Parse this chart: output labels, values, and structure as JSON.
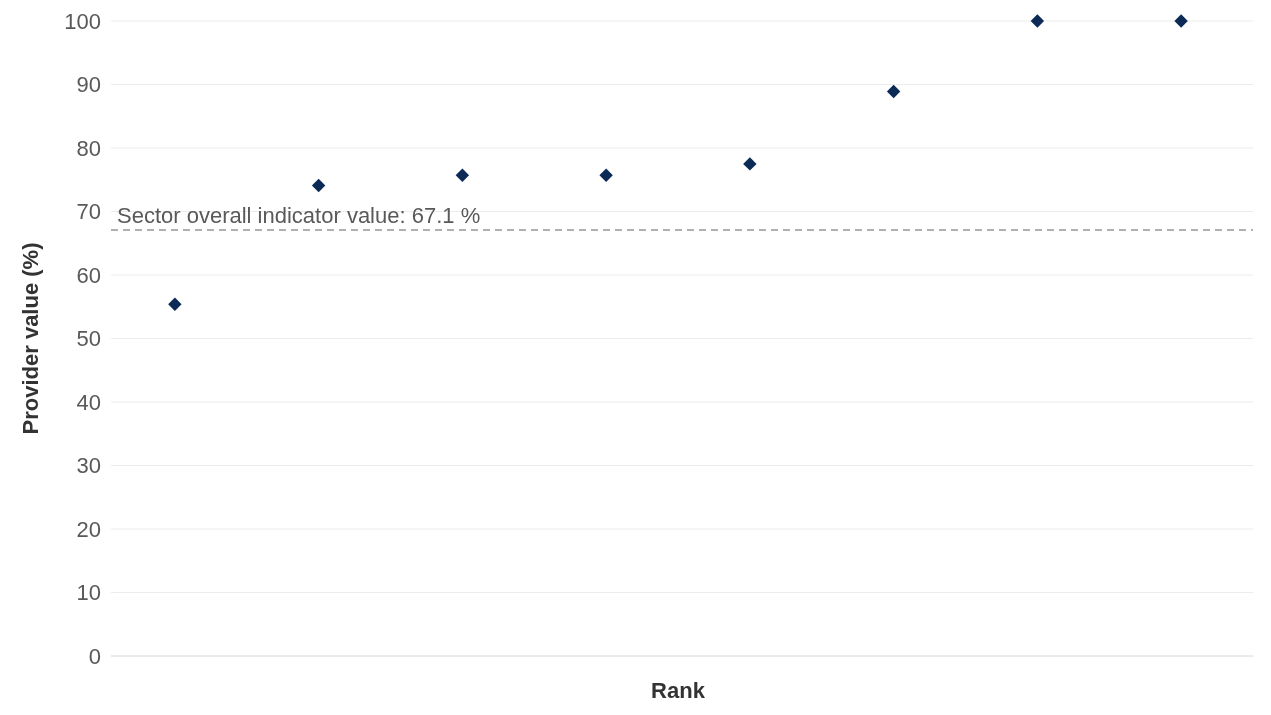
{
  "chart_data": {
    "type": "scatter",
    "xlabel": "Rank",
    "ylabel": "Provider value (%)",
    "categories": [
      null,
      null,
      null,
      null,
      null,
      null,
      null,
      null
    ],
    "series": [
      {
        "color": "#0b2a55",
        "values": [
          55.4,
          74.1,
          75.7,
          75.7,
          77.5,
          88.9,
          100,
          100
        ]
      }
    ],
    "ylim": [
      0,
      100
    ],
    "yticks": [
      0,
      10,
      20,
      30,
      40,
      50,
      60,
      70,
      80,
      90,
      100
    ],
    "grid": "y",
    "marker": "diamond",
    "ref_lines": [
      {
        "axis": "y",
        "value": 67.1,
        "label": "Sector overall indicator value: 67.1 %",
        "color": "#b0b0b0",
        "line_style": "dashed"
      }
    ]
  }
}
